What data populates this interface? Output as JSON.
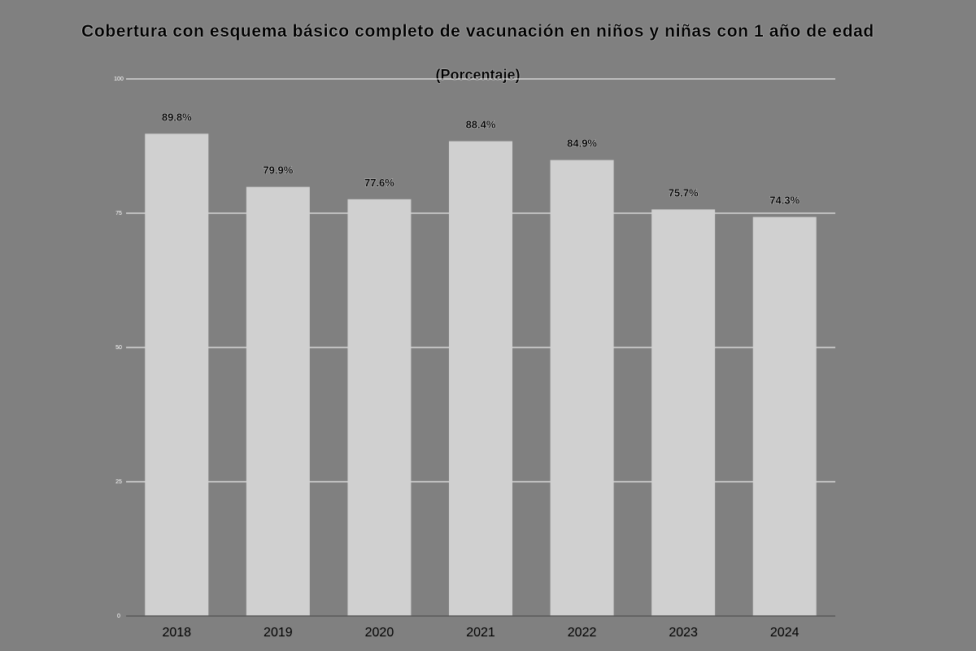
{
  "chart_data": {
    "type": "bar",
    "title": "Cobertura con esquema básico completo de vacunación en niños y niñas con 1 año de edad",
    "subtitle": "(Porcentaje)",
    "categories": [
      "2018",
      "2019",
      "2020",
      "2021",
      "2022",
      "2023",
      "2024"
    ],
    "values": [
      89.8,
      79.9,
      77.6,
      88.4,
      84.9,
      75.7,
      74.3
    ],
    "data_labels": [
      "89.8%",
      "79.9%",
      "77.6%",
      "88.4%",
      "84.9%",
      "75.7%",
      "74.3%"
    ],
    "ylim": [
      0,
      100
    ],
    "yticks": [
      0,
      25,
      50,
      75,
      100
    ],
    "grid": true,
    "legend": "none",
    "colors": {
      "background": "#808080",
      "bar": "#d0d0d0",
      "grid": "#ffffff",
      "axis": "#595959",
      "text": "#000000"
    }
  }
}
